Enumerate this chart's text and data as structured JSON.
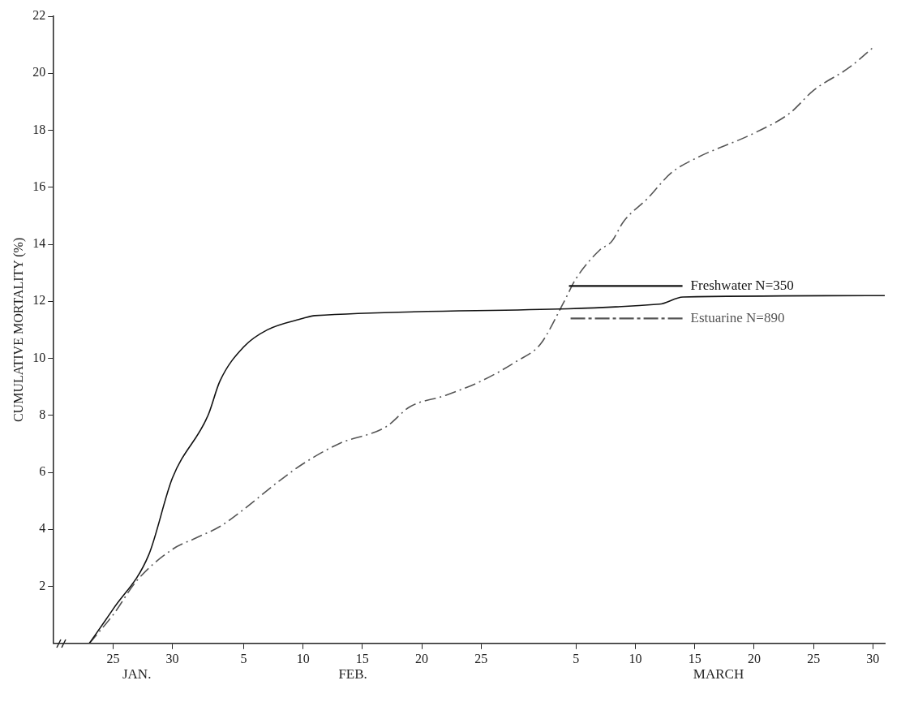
{
  "chart_data": {
    "type": "line",
    "ylabel": "CUMULATIVE MORTALITY (%)",
    "xlim": [
      "--01-20",
      "--03-31"
    ],
    "xticks": [
      {
        "value": "--01-25",
        "label": "25"
      },
      {
        "value": "--01-30",
        "label": "30"
      },
      {
        "value": "--02-05",
        "label": "5"
      },
      {
        "value": "--02-10",
        "label": "10"
      },
      {
        "value": "--02-15",
        "label": "15"
      },
      {
        "value": "--02-20",
        "label": "20"
      },
      {
        "value": "--02-25",
        "label": "25"
      },
      {
        "value": "--03-05",
        "label": "5"
      },
      {
        "value": "--03-10",
        "label": "10"
      },
      {
        "value": "--03-15",
        "label": "15"
      },
      {
        "value": "--03-20",
        "label": "20"
      },
      {
        "value": "--03-25",
        "label": "25"
      },
      {
        "value": "--03-30",
        "label": "30"
      }
    ],
    "ylim": [
      0,
      22
    ],
    "yticks": [
      2,
      4,
      6,
      8,
      10,
      12,
      14,
      16,
      18,
      20,
      22
    ],
    "grid": false,
    "legend": "right",
    "marker": "none",
    "annotations": [
      "JAN.",
      "FEB.",
      "MARCH"
    ],
    "series": [
      {
        "name": "Freshwater N=350",
        "color": "#111111",
        "line_style": "solid",
        "x": [
          "--01-23",
          "--01-25",
          "--01-28",
          "--01-30",
          "--02-02",
          "--02-03",
          "--02-05",
          "--02-07",
          "--02-10",
          "--02-11",
          "--03-12",
          "--03-14",
          "--03-31"
        ],
        "values": [
          0,
          1.2,
          3.1,
          5.8,
          8.0,
          9.2,
          10.4,
          11.0,
          11.4,
          11.5,
          11.9,
          12.15,
          12.2
        ]
      },
      {
        "name": "Estuarine N=890",
        "color": "#555555",
        "line_style": "dashed",
        "x": [
          "--01-23",
          "--01-25",
          "--01-27",
          "--01-30",
          "--02-01",
          "--02-03",
          "--02-05",
          "--02-08",
          "--02-10",
          "--02-13",
          "--02-17",
          "--02-19",
          "--02-22",
          "--02-25",
          "--02-28",
          "--03-02",
          "--03-04",
          "--03-05",
          "--03-07",
          "--03-08",
          "--03-09",
          "--03-11",
          "--03-13",
          "--03-15",
          "--03-20",
          "--03-23",
          "--03-25",
          "--03-28",
          "--03-30"
        ],
        "values": [
          0,
          1.0,
          2.2,
          3.3,
          3.7,
          4.1,
          4.7,
          5.7,
          6.3,
          7.0,
          7.6,
          8.3,
          8.7,
          9.2,
          9.9,
          10.5,
          12.0,
          12.8,
          13.8,
          14.1,
          14.8,
          15.6,
          16.5,
          17.0,
          17.9,
          18.6,
          19.4,
          20.2,
          20.9
        ]
      }
    ]
  }
}
